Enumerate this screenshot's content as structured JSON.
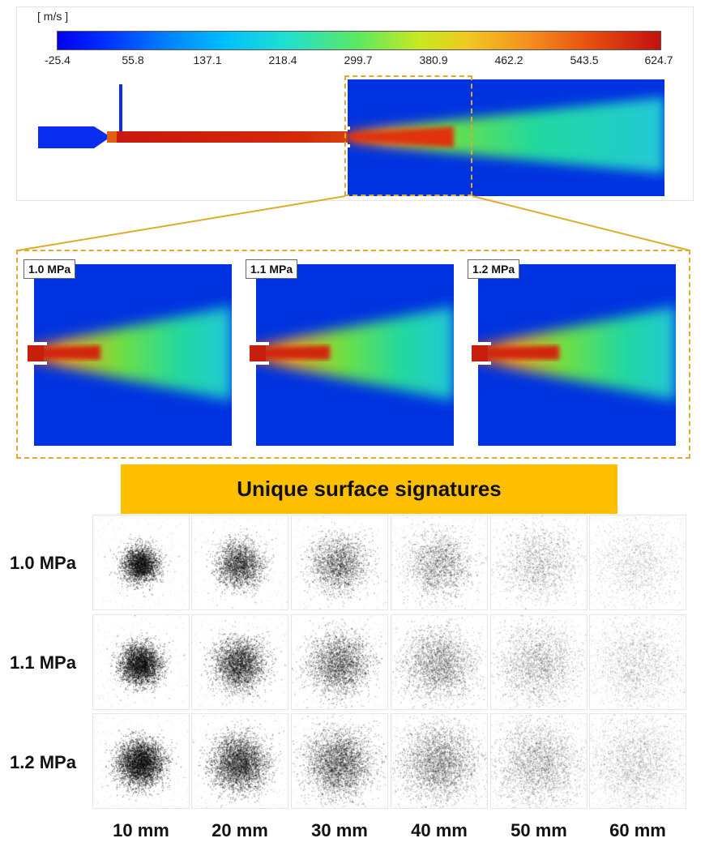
{
  "colorbar": {
    "unit": "[ m/s ]",
    "ticks": [
      "-25.4",
      "55.8",
      "137.1",
      "218.4",
      "299.7",
      "380.9",
      "462.2",
      "543.5",
      "624.7"
    ]
  },
  "detail_panels": [
    {
      "label": "1.0 MPa"
    },
    {
      "label": "1.1 MPa"
    },
    {
      "label": "1.2 MPa"
    }
  ],
  "banner": {
    "text": "Unique surface signatures"
  },
  "grid": {
    "rows": [
      "1.0 MPa",
      "1.1 MPa",
      "1.2 MPa"
    ],
    "columns": [
      "10 mm",
      "20 mm",
      "30 mm",
      "40 mm",
      "50 mm",
      "60 mm"
    ]
  },
  "colors": {
    "accent": "#fdbf00",
    "frame": "#e0aa2a",
    "field": "#0033e0"
  }
}
